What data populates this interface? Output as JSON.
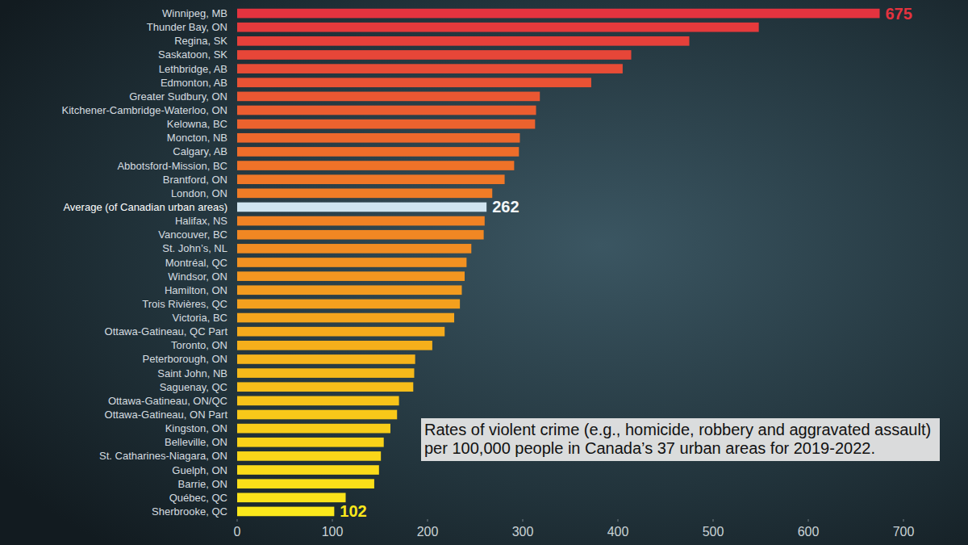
{
  "chart_data": {
    "type": "bar",
    "orientation": "horizontal",
    "annotation": "Rates of violent crime (e.g., homicide, robbery and aggravated assault) per 100,000 people in Canada’s 37 urban areas for 2019-2022.",
    "categories": [
      "Winnipeg, MB",
      "Thunder Bay, ON",
      "Regina, SK",
      "Saskatoon, SK",
      "Lethbridge, AB",
      "Edmonton, AB",
      "Greater Sudbury, ON",
      "Kitchener-Cambridge-Waterloo, ON",
      "Kelowna, BC",
      "Moncton, NB",
      "Calgary, AB",
      "Abbotsford-Mission, BC",
      "Brantford, ON",
      "London, ON",
      "Average (of Canadian urban areas)",
      "Halifax, NS",
      "Vancouver, BC",
      "St. John’s, NL",
      "Montréal, QC",
      "Windsor, ON",
      "Hamilton, ON",
      "Trois Rivières, QC",
      "Victoria, BC",
      "Ottawa-Gatineau, QC Part",
      "Toronto, ON",
      "Peterborough, ON",
      "Saint John, NB",
      "Saguenay, QC",
      "Ottawa-Gatineau, ON/QC",
      "Ottawa-Gatineau, ON Part",
      "Kingston, ON",
      "Belleville, ON",
      "St. Catharines-Niagara, ON",
      "Guelph, ON",
      "Barrie, ON",
      "Québec, QC",
      "Sherbrooke, QC"
    ],
    "values": [
      675,
      548,
      475,
      414,
      405,
      372,
      318,
      314,
      313,
      297,
      296,
      291,
      281,
      268,
      262,
      260,
      259,
      246,
      241,
      239,
      236,
      234,
      228,
      218,
      205,
      187,
      186,
      185,
      170,
      168,
      161,
      154,
      151,
      149,
      144,
      114,
      102
    ],
    "data_labels": true,
    "value_labels": [
      "675",
      null,
      null,
      null,
      null,
      null,
      null,
      null,
      null,
      null,
      null,
      null,
      null,
      null,
      "262",
      null,
      null,
      null,
      null,
      null,
      null,
      null,
      null,
      null,
      null,
      null,
      null,
      null,
      null,
      null,
      null,
      null,
      null,
      null,
      null,
      null,
      "102"
    ],
    "colors": [
      "#e4333f",
      "#e53a3c",
      "#e6403a",
      "#e74638",
      "#e84c36",
      "#e95234",
      "#ea5732",
      "#eb5d30",
      "#ec622e",
      "#ed682c",
      "#ee6d2a",
      "#ef7228",
      "#f07727",
      "#f07c26",
      "#cfe4f0",
      "#f18224",
      "#f18723",
      "#f28c22",
      "#f29121",
      "#f39620",
      "#f39b1f",
      "#f4a01e",
      "#f4a51d",
      "#f5aa1c",
      "#f5af1b",
      "#f6b41b",
      "#f6b91a",
      "#f7be1a",
      "#f7c319",
      "#f8c819",
      "#f8cd19",
      "#f9d219",
      "#f9d619",
      "#fadb19",
      "#fadf19",
      "#fbe31a",
      "#fbe81b"
    ],
    "xlim": [
      0,
      700
    ],
    "xticks": [
      0,
      100,
      200,
      300,
      400,
      500,
      600,
      700
    ],
    "grid": false
  }
}
